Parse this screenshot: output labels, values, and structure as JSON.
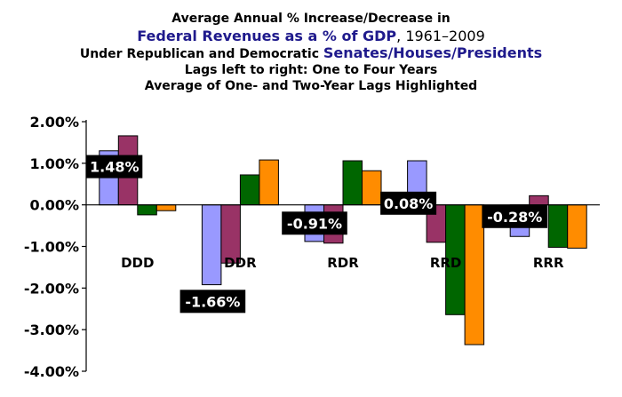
{
  "title": {
    "line1": "Average Annual % Increase/Decrease in",
    "line2_highlight": "Federal Revenues as a % of GDP",
    "line2_rest": ", 1961–2009",
    "line3_prefix": "Under Republican and Democratic ",
    "line3_highlight": "Senates/Houses/Presidents",
    "line4": "Lags left to right: One to Four Years",
    "line5": "Average of One- and Two-Year Lags Highlighted"
  },
  "chart_data": {
    "type": "bar",
    "categories": [
      "DDD",
      "DDR",
      "RDR",
      "RRD",
      "RRR"
    ],
    "series": [
      {
        "values": [
          1.3,
          -1.92,
          -0.88,
          1.06,
          -0.76
        ],
        "color": "#9999ff"
      },
      {
        "values": [
          1.66,
          -1.4,
          -0.92,
          -0.9,
          0.22
        ],
        "color": "#993366"
      },
      {
        "values": [
          -0.24,
          0.72,
          1.06,
          -2.64,
          -1.02
        ],
        "color": "#006600"
      },
      {
        "values": [
          -0.14,
          1.08,
          0.82,
          -3.36,
          -1.04
        ],
        "color": "#ff8c00"
      }
    ],
    "averages": [
      {
        "category": "DDD",
        "label": "1.48%"
      },
      {
        "category": "DDR",
        "label": "-1.66%"
      },
      {
        "category": "RDR",
        "label": "-0.91%"
      },
      {
        "category": "RRD",
        "label": "0.08%"
      },
      {
        "category": "RRR",
        "label": "-0.28%"
      }
    ],
    "ylim": [
      -4,
      2
    ],
    "yticks": [
      {
        "value": 2,
        "label": "2.00%"
      },
      {
        "value": 1,
        "label": "1.00%"
      },
      {
        "value": 0,
        "label": "0.00%"
      },
      {
        "value": -1,
        "label": "-1.00%"
      },
      {
        "value": -2,
        "label": "-2.00%"
      },
      {
        "value": -3,
        "label": "-3.00%"
      },
      {
        "value": -4,
        "label": "-4.00%"
      }
    ],
    "grid": false,
    "legend": "none"
  }
}
